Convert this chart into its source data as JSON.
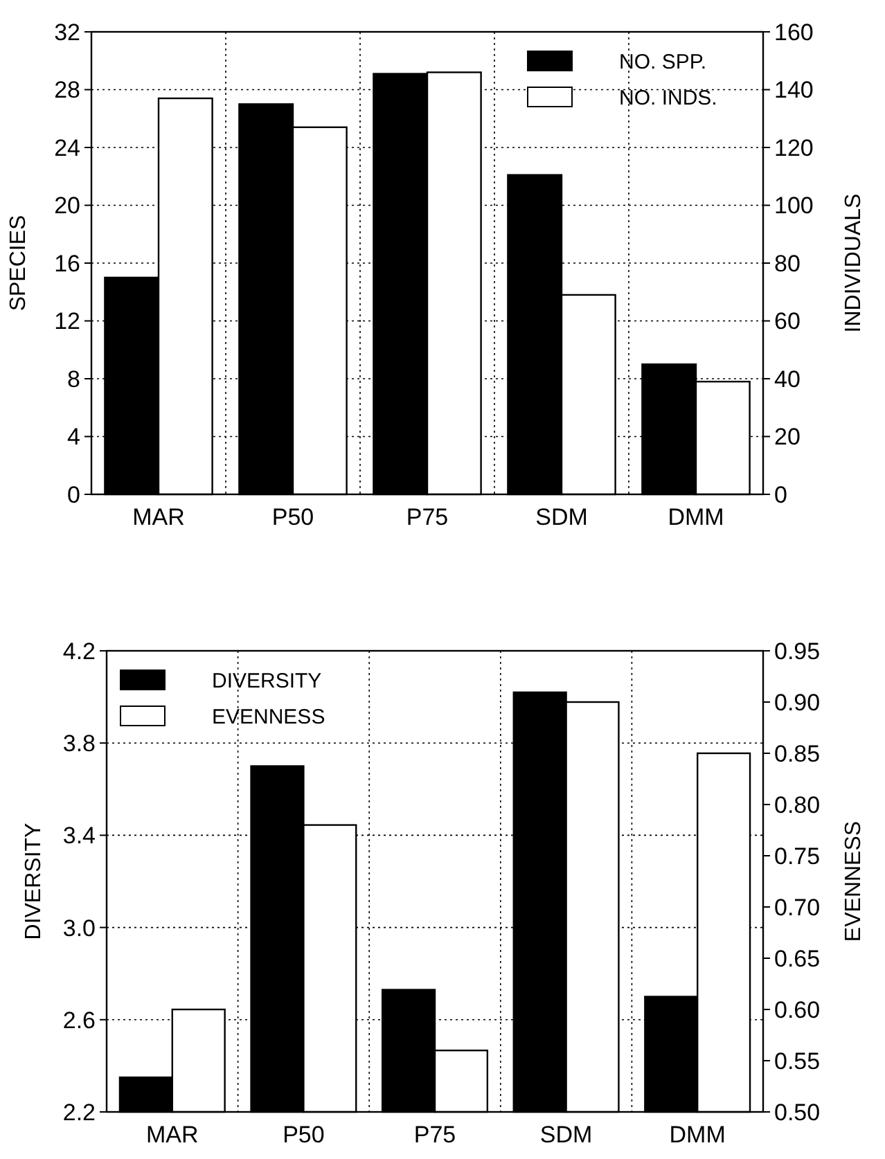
{
  "chart_data": [
    {
      "type": "bar",
      "categories": [
        "MAR",
        "P50",
        "P75",
        "SDM",
        "DMM"
      ],
      "ylabel": "SPECIES",
      "y2label": "INDIVIDUALS",
      "ylim": [
        0,
        32
      ],
      "yticks": [
        0,
        4,
        8,
        12,
        16,
        20,
        24,
        28,
        32
      ],
      "y2lim": [
        0,
        160
      ],
      "y2ticks": [
        0,
        20,
        40,
        60,
        80,
        100,
        120,
        140,
        160
      ],
      "grid": true,
      "legend": "top right",
      "series": [
        {
          "name": "NO. SPP.",
          "color": "#000000",
          "values": [
            15,
            27,
            29.1,
            22.1,
            9
          ]
        },
        {
          "name": "NO. INDS.",
          "color": "#ffffff",
          "axis": "y2",
          "values": [
            137,
            127,
            146,
            69,
            39
          ]
        }
      ]
    },
    {
      "type": "bar",
      "categories": [
        "MAR",
        "P50",
        "P75",
        "SDM",
        "DMM"
      ],
      "ylabel": "DIVERSITY",
      "y2label": "EVENNESS",
      "ylim": [
        2.2,
        4.2
      ],
      "yticks": [
        2.2,
        2.6,
        {
          "value": 3,
          "label": "3.0"
        },
        3.4,
        3.8,
        4.2
      ],
      "y2lim": [
        0.5,
        0.95
      ],
      "y2ticks": [
        {
          "value": 0.5,
          "label": "0.50"
        },
        0.55,
        {
          "value": 0.6,
          "label": "0.60"
        },
        0.65,
        {
          "value": 0.7,
          "label": "0.70"
        },
        0.75,
        {
          "value": 0.8,
          "label": "0.80"
        },
        0.85,
        {
          "value": 0.9,
          "label": "0.90"
        },
        0.95
      ],
      "grid": true,
      "legend": "top left",
      "series": [
        {
          "name": "DIVERSITY",
          "color": "#000000",
          "values": [
            2.35,
            3.7,
            2.73,
            4.02,
            2.7
          ]
        },
        {
          "name": "EVENNESS",
          "color": "#ffffff",
          "axis": "y2",
          "values": [
            0.6,
            0.78,
            0.56,
            0.9,
            0.85
          ]
        }
      ]
    }
  ]
}
